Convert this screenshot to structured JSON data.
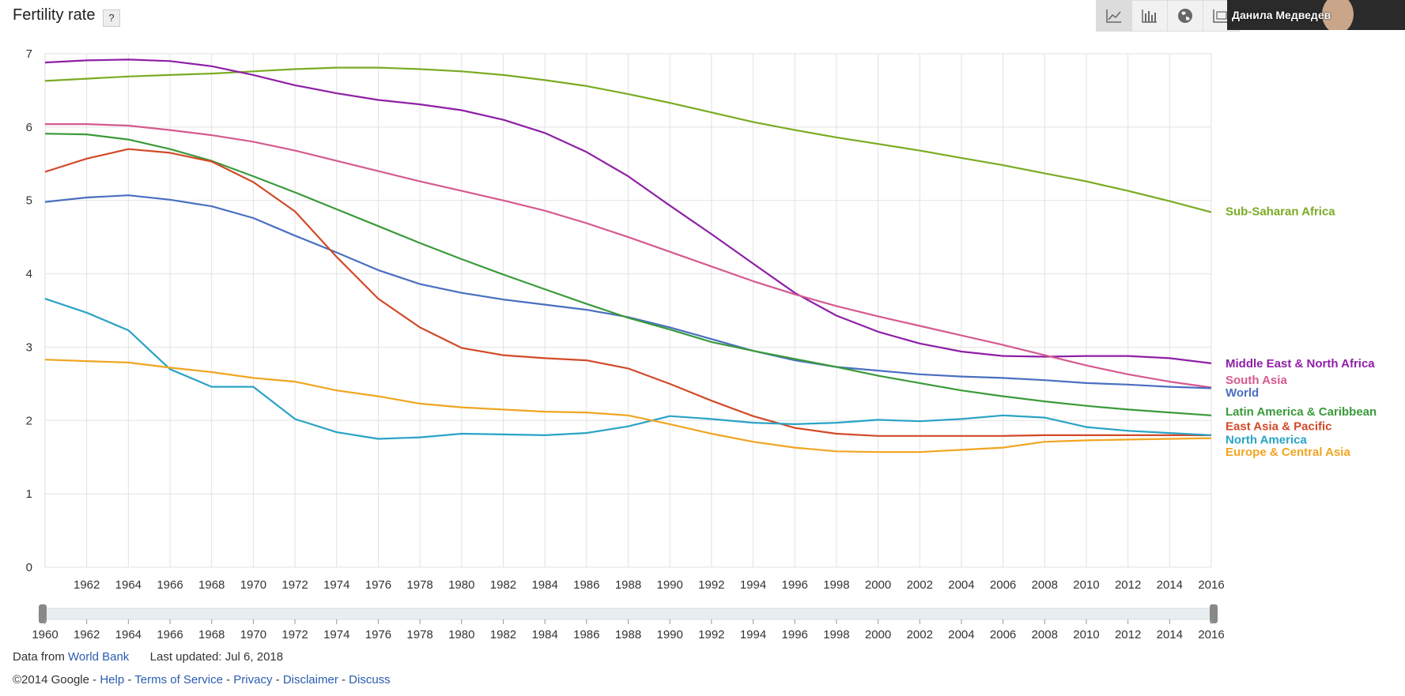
{
  "header": {
    "title": "Fertility rate",
    "help": "?"
  },
  "toolbar": [
    {
      "name": "line-chart-icon",
      "active": true
    },
    {
      "name": "bar-chart-icon",
      "active": false
    },
    {
      "name": "globe-icon",
      "active": false
    },
    {
      "name": "table-icon",
      "active": false
    }
  ],
  "webcam": {
    "name": "Данила Медведев"
  },
  "footer": {
    "data_from": "Data from",
    "source_link": "World Bank",
    "last_updated": "Last updated: Jul 6, 2018",
    "copyright": "©2014 Google",
    "sep": " - ",
    "links": [
      "Help",
      "Terms of Service",
      "Privacy",
      "Disclaimer",
      "Discuss"
    ]
  },
  "chart_data": {
    "type": "line",
    "title": "Fertility rate",
    "ylim": [
      0,
      7
    ],
    "yticks": [
      0,
      1,
      2,
      3,
      4,
      5,
      6,
      7
    ],
    "xlim": [
      1960,
      2016
    ],
    "xticks": [
      "1962",
      "1964",
      "1966",
      "1968",
      "1970",
      "1972",
      "1974",
      "1976",
      "1978",
      "1980",
      "1982",
      "1984",
      "1986",
      "1988",
      "1990",
      "1992",
      "1994",
      "1996",
      "1998",
      "2000",
      "2002",
      "2004",
      "2006",
      "2008",
      "2010",
      "2012",
      "2014",
      "2016"
    ],
    "slider_ticks": [
      "1960",
      "1962",
      "1964",
      "1966",
      "1968",
      "1970",
      "1972",
      "1974",
      "1976",
      "1978",
      "1980",
      "1982",
      "1984",
      "1986",
      "1988",
      "1990",
      "1992",
      "1994",
      "1996",
      "1998",
      "2000",
      "2002",
      "2004",
      "2006",
      "2008",
      "2010",
      "2012",
      "2014",
      "2016"
    ],
    "grid": true,
    "legend": "right",
    "x": [
      1960,
      1962,
      1964,
      1966,
      1968,
      1970,
      1972,
      1974,
      1976,
      1978,
      1980,
      1982,
      1984,
      1986,
      1988,
      1990,
      1992,
      1994,
      1996,
      1998,
      2000,
      2002,
      2004,
      2006,
      2008,
      2010,
      2012,
      2014,
      2016
    ],
    "series": [
      {
        "name": "Sub-Saharan Africa",
        "color": "#7aab22",
        "label_y": 4.85,
        "values": [
          6.63,
          6.66,
          6.69,
          6.71,
          6.73,
          6.76,
          6.79,
          6.81,
          6.81,
          6.79,
          6.76,
          6.71,
          6.64,
          6.56,
          6.45,
          6.33,
          6.2,
          6.07,
          5.96,
          5.86,
          5.77,
          5.68,
          5.58,
          5.48,
          5.37,
          5.26,
          5.13,
          4.99,
          4.84
        ]
      },
      {
        "name": "Middle East & North Africa",
        "color": "#8e1fa6",
        "label_y": 2.78,
        "values": [
          6.88,
          6.91,
          6.92,
          6.9,
          6.83,
          6.71,
          6.57,
          6.46,
          6.37,
          6.31,
          6.23,
          6.1,
          5.92,
          5.66,
          5.33,
          4.93,
          4.54,
          4.14,
          3.74,
          3.43,
          3.21,
          3.05,
          2.94,
          2.88,
          2.87,
          2.88,
          2.88,
          2.85,
          2.78
        ]
      },
      {
        "name": "South Asia",
        "color": "#d55a8f",
        "label_y": 2.55,
        "values": [
          6.04,
          6.04,
          6.02,
          5.96,
          5.89,
          5.8,
          5.68,
          5.54,
          5.4,
          5.26,
          5.13,
          5.0,
          4.86,
          4.69,
          4.5,
          4.3,
          4.1,
          3.9,
          3.72,
          3.56,
          3.42,
          3.29,
          3.16,
          3.03,
          2.89,
          2.75,
          2.63,
          2.53,
          2.45
        ]
      },
      {
        "name": "World",
        "color": "#4a6fc0",
        "label_y": 2.38,
        "values": [
          4.98,
          5.04,
          5.07,
          5.01,
          4.92,
          4.76,
          4.52,
          4.29,
          4.05,
          3.86,
          3.74,
          3.65,
          3.58,
          3.51,
          3.41,
          3.27,
          3.11,
          2.95,
          2.82,
          2.73,
          2.68,
          2.63,
          2.6,
          2.58,
          2.55,
          2.51,
          2.49,
          2.46,
          2.44
        ]
      },
      {
        "name": "Latin America & Caribbean",
        "color": "#3a9a3a",
        "label_y": 2.12,
        "values": [
          5.91,
          5.9,
          5.83,
          5.7,
          5.54,
          5.33,
          5.11,
          4.88,
          4.65,
          4.42,
          4.2,
          3.99,
          3.79,
          3.59,
          3.4,
          3.24,
          3.07,
          2.95,
          2.84,
          2.73,
          2.61,
          2.51,
          2.41,
          2.33,
          2.26,
          2.2,
          2.15,
          2.11,
          2.07
        ]
      },
      {
        "name": "East Asia & Pacific",
        "color": "#d24a28",
        "label_y": 1.92,
        "values": [
          5.39,
          5.57,
          5.7,
          5.65,
          5.53,
          5.25,
          4.85,
          4.23,
          3.66,
          3.27,
          2.99,
          2.89,
          2.85,
          2.82,
          2.71,
          2.5,
          2.27,
          2.06,
          1.9,
          1.82,
          1.79,
          1.79,
          1.79,
          1.79,
          1.8,
          1.8,
          1.8,
          1.8,
          1.8
        ]
      },
      {
        "name": "North America",
        "color": "#2aa3c5",
        "label_y": 1.74,
        "values": [
          3.66,
          3.47,
          3.23,
          2.7,
          2.46,
          2.46,
          2.02,
          1.84,
          1.75,
          1.77,
          1.82,
          1.81,
          1.8,
          1.83,
          1.92,
          2.06,
          2.02,
          1.97,
          1.95,
          1.97,
          2.01,
          1.99,
          2.02,
          2.07,
          2.04,
          1.91,
          1.86,
          1.83,
          1.8
        ]
      },
      {
        "name": "Europe & Central Asia",
        "color": "#f0a521",
        "label_y": 1.57,
        "values": [
          2.83,
          2.81,
          2.79,
          2.72,
          2.66,
          2.58,
          2.53,
          2.41,
          2.33,
          2.23,
          2.18,
          2.15,
          2.12,
          2.11,
          2.07,
          1.95,
          1.82,
          1.71,
          1.63,
          1.58,
          1.57,
          1.57,
          1.6,
          1.63,
          1.71,
          1.73,
          1.74,
          1.75,
          1.76
        ]
      }
    ]
  }
}
